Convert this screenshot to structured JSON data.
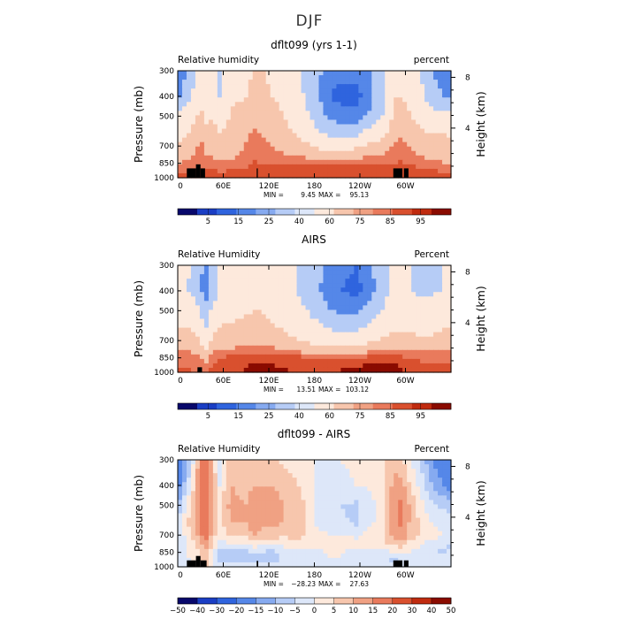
{
  "figure_title": "DJF",
  "chart_data": [
    {
      "type": "heatmap",
      "title": "dflt099 (yrs 1-1)",
      "left_label": "Relative humidity",
      "right_label": "percent",
      "ylabel": "Pressure (mb)",
      "y2label": "Height (km)",
      "x_ticks": [
        "0",
        "60E",
        "120E",
        "180",
        "120W",
        "60W"
      ],
      "y_ticks": [
        "300",
        "400",
        "500",
        "700",
        "850",
        "1000"
      ],
      "height_ticks": [
        "8",
        "4"
      ],
      "stats": {
        "min_label": "MIN =",
        "min": "9.45",
        "max_label": "MAX =",
        "max": "95.13"
      },
      "colorbar": {
        "labels": [
          "5",
          "15",
          "25",
          "40",
          "60",
          "75",
          "85",
          "95"
        ],
        "colors": [
          "#08086b",
          "#1a3ec4",
          "#2f64de",
          "#5587e8",
          "#86aaf0",
          "#b6ccf6",
          "#dde7f9",
          "#fde9dc",
          "#f7c6ad",
          "#f0a183",
          "#e97a5c",
          "#d9502e",
          "#c02b0f",
          "#8a0b00"
        ]
      },
      "field": {
        "lon": [
          0,
          18,
          30,
          36,
          45,
          55,
          70,
          90,
          100,
          110,
          125,
          140,
          160,
          180,
          200,
          215,
          235,
          250,
          270,
          285,
          295,
          305,
          320,
          335,
          350,
          360
        ],
        "pressure": [
          300,
          400,
          500,
          600,
          700,
          775,
          850,
          925,
          1000
        ],
        "values": [
          [
            12,
            30,
            55,
            45,
            55,
            35,
            50,
            55,
            60,
            62,
            55,
            50,
            42,
            30,
            20,
            18,
            18,
            22,
            40,
            55,
            55,
            50,
            40,
            25,
            20,
            15
          ],
          [
            22,
            40,
            55,
            48,
            55,
            40,
            55,
            60,
            65,
            65,
            60,
            55,
            45,
            28,
            15,
            12,
            12,
            18,
            35,
            60,
            60,
            55,
            45,
            30,
            25,
            22
          ],
          [
            45,
            55,
            65,
            55,
            60,
            50,
            62,
            68,
            72,
            72,
            65,
            60,
            50,
            35,
            22,
            18,
            18,
            25,
            40,
            65,
            68,
            62,
            55,
            45,
            48,
            50
          ],
          [
            55,
            62,
            70,
            65,
            65,
            60,
            66,
            72,
            76,
            75,
            70,
            65,
            58,
            45,
            35,
            32,
            35,
            45,
            55,
            70,
            74,
            68,
            62,
            58,
            60,
            58
          ],
          [
            60,
            68,
            78,
            72,
            70,
            66,
            70,
            76,
            80,
            78,
            74,
            70,
            66,
            58,
            52,
            52,
            56,
            62,
            68,
            76,
            80,
            74,
            68,
            66,
            65,
            62
          ],
          [
            66,
            72,
            80,
            76,
            74,
            70,
            72,
            78,
            82,
            80,
            78,
            76,
            74,
            70,
            68,
            68,
            70,
            72,
            74,
            80,
            83,
            78,
            74,
            72,
            70,
            68
          ],
          [
            74,
            80,
            84,
            80,
            78,
            76,
            78,
            82,
            86,
            84,
            82,
            82,
            82,
            82,
            82,
            82,
            82,
            83,
            82,
            84,
            86,
            84,
            80,
            78,
            76,
            74
          ],
          [
            82,
            86,
            88,
            86,
            86,
            84,
            86,
            88,
            90,
            90,
            90,
            92,
            93,
            94,
            94,
            94,
            94,
            93,
            92,
            90,
            92,
            90,
            88,
            86,
            84,
            82
          ],
          [
            86,
            88,
            90,
            90,
            90,
            88,
            90,
            92,
            93,
            92,
            92,
            92,
            92,
            92,
            92,
            92,
            92,
            92,
            92,
            90,
            92,
            92,
            92,
            92,
            90,
            88
          ]
        ]
      }
    },
    {
      "type": "heatmap",
      "title": "AIRS",
      "left_label": "Relative Humidity",
      "right_label": "Percent",
      "ylabel": "Pressure (mb)",
      "y2label": "Height (km)",
      "x_ticks": [
        "0",
        "60E",
        "120E",
        "180",
        "120W",
        "60W"
      ],
      "y_ticks": [
        "300",
        "400",
        "500",
        "700",
        "850",
        "1000"
      ],
      "height_ticks": [
        "8",
        "4"
      ],
      "stats": {
        "min_label": "MIN =",
        "min": "13.51",
        "max_label": "MAX =",
        "max": "103.12"
      },
      "colorbar": {
        "labels": [
          "5",
          "15",
          "25",
          "40",
          "60",
          "75",
          "85",
          "95"
        ],
        "colors": [
          "#08086b",
          "#1a3ec4",
          "#2f64de",
          "#5587e8",
          "#86aaf0",
          "#b6ccf6",
          "#dde7f9",
          "#fde9dc",
          "#f7c6ad",
          "#f0a183",
          "#e97a5c",
          "#d9502e",
          "#c02b0f",
          "#8a0b00"
        ]
      },
      "field": {
        "lon": [
          0,
          18,
          30,
          36,
          45,
          55,
          70,
          90,
          100,
          110,
          125,
          140,
          160,
          180,
          200,
          215,
          235,
          250,
          270,
          285,
          295,
          305,
          320,
          335,
          350,
          360
        ],
        "pressure": [
          300,
          400,
          500,
          600,
          700,
          775,
          850,
          925,
          1000
        ],
        "values": [
          [
            45,
            40,
            30,
            15,
            30,
            40,
            45,
            50,
            55,
            55,
            50,
            45,
            40,
            30,
            22,
            18,
            15,
            20,
            35,
            45,
            42,
            40,
            38,
            38,
            40,
            45
          ],
          [
            42,
            38,
            28,
            18,
            30,
            40,
            45,
            50,
            55,
            55,
            50,
            45,
            38,
            28,
            20,
            15,
            12,
            18,
            32,
            45,
            42,
            40,
            38,
            38,
            40,
            42
          ],
          [
            50,
            48,
            40,
            25,
            42,
            50,
            55,
            58,
            60,
            60,
            56,
            52,
            45,
            35,
            26,
            22,
            22,
            28,
            40,
            52,
            50,
            48,
            46,
            46,
            48,
            50
          ],
          [
            60,
            58,
            52,
            35,
            55,
            60,
            62,
            64,
            66,
            66,
            62,
            58,
            52,
            45,
            38,
            35,
            35,
            40,
            50,
            58,
            58,
            56,
            55,
            55,
            58,
            60
          ],
          [
            68,
            66,
            62,
            45,
            62,
            66,
            68,
            70,
            72,
            72,
            68,
            64,
            60,
            55,
            50,
            48,
            50,
            55,
            62,
            66,
            66,
            64,
            63,
            63,
            66,
            68
          ],
          [
            75,
            73,
            70,
            55,
            70,
            74,
            76,
            78,
            80,
            80,
            78,
            74,
            70,
            66,
            64,
            64,
            66,
            70,
            74,
            76,
            76,
            74,
            73,
            73,
            74,
            75
          ],
          [
            82,
            80,
            78,
            65,
            80,
            85,
            88,
            90,
            91,
            92,
            92,
            90,
            88,
            86,
            86,
            86,
            86,
            88,
            90,
            92,
            88,
            84,
            82,
            82,
            82,
            82
          ],
          [
            85,
            84,
            82,
            75,
            86,
            90,
            92,
            94,
            96,
            96,
            95,
            94,
            92,
            92,
            92,
            93,
            94,
            96,
            98,
            98,
            94,
            90,
            88,
            86,
            86,
            85
          ],
          [
            88,
            86,
            84,
            80,
            88,
            92,
            94,
            96,
            98,
            98,
            97,
            96,
            95,
            95,
            95,
            96,
            97,
            99,
            100,
            100,
            96,
            92,
            90,
            88,
            88,
            88
          ]
        ]
      }
    },
    {
      "type": "heatmap",
      "title": "dflt099 - AIRS",
      "left_label": "Relative Humidity",
      "right_label": "Percent",
      "ylabel": "Pressure (mb)",
      "y2label": "Height (km)",
      "x_ticks": [
        "0",
        "60E",
        "120E",
        "180",
        "120W",
        "60W"
      ],
      "y_ticks": [
        "300",
        "400",
        "500",
        "700",
        "850",
        "1000"
      ],
      "height_ticks": [
        "8",
        "4"
      ],
      "stats": {
        "min_label": "MIN =",
        "min": "−28.23",
        "max_label": "MAX =",
        "max": "27.63"
      },
      "colorbar": {
        "labels": [
          "−50",
          "−40",
          "−30",
          "−20",
          "−15",
          "−10",
          "−5",
          "0",
          "5",
          "10",
          "15",
          "20",
          "30",
          "40",
          "50"
        ],
        "colors": [
          "#08086b",
          "#1a3ec4",
          "#2f64de",
          "#5587e8",
          "#86aaf0",
          "#b6ccf6",
          "#dde7f9",
          "#fde9dc",
          "#f7c6ad",
          "#f0a183",
          "#e97a5c",
          "#d9502e",
          "#c02b0f",
          "#8a0b00"
        ]
      },
      "field": {
        "lon": [
          0,
          18,
          30,
          36,
          45,
          55,
          70,
          90,
          100,
          110,
          125,
          140,
          160,
          180,
          200,
          215,
          235,
          250,
          270,
          285,
          295,
          305,
          320,
          335,
          350,
          360
        ],
        "pressure": [
          300,
          400,
          500,
          600,
          700,
          775,
          850,
          925,
          1000
        ],
        "values": [
          [
            -20,
            -5,
            15,
            18,
            10,
            -5,
            8,
            6,
            5,
            8,
            6,
            4,
            2,
            0,
            -2,
            0,
            2,
            2,
            4,
            8,
            6,
            0,
            -5,
            -15,
            -20,
            -22
          ],
          [
            -18,
            0,
            18,
            20,
            12,
            0,
            10,
            8,
            10,
            10,
            10,
            8,
            5,
            0,
            -5,
            -3,
            0,
            0,
            3,
            12,
            12,
            6,
            -2,
            -10,
            -15,
            -18
          ],
          [
            -10,
            6,
            18,
            20,
            14,
            4,
            12,
            10,
            14,
            12,
            12,
            10,
            8,
            0,
            -5,
            -5,
            -6,
            -2,
            2,
            14,
            16,
            10,
            2,
            -4,
            -6,
            -8
          ],
          [
            -4,
            8,
            16,
            22,
            12,
            4,
            10,
            10,
            14,
            12,
            12,
            10,
            8,
            0,
            -4,
            -4,
            -6,
            -2,
            2,
            14,
            16,
            10,
            4,
            0,
            -2,
            -4
          ],
          [
            -4,
            6,
            12,
            20,
            10,
            2,
            6,
            6,
            10,
            8,
            8,
            6,
            6,
            2,
            0,
            0,
            -2,
            2,
            4,
            12,
            14,
            8,
            4,
            2,
            0,
            -2
          ],
          [
            -6,
            2,
            8,
            16,
            4,
            -2,
            0,
            0,
            2,
            2,
            0,
            2,
            4,
            4,
            4,
            4,
            4,
            4,
            4,
            6,
            8,
            4,
            0,
            -2,
            -4,
            -6
          ],
          [
            -4,
            2,
            6,
            10,
            2,
            -6,
            -6,
            -6,
            -4,
            -6,
            -6,
            -4,
            -4,
            -2,
            0,
            0,
            -2,
            -2,
            -4,
            0,
            0,
            0,
            -2,
            -4,
            -6,
            -4
          ],
          [
            -4,
            0,
            4,
            8,
            0,
            -6,
            -6,
            -6,
            -6,
            -6,
            -6,
            -4,
            -2,
            0,
            0,
            0,
            -2,
            -3,
            -4,
            -6,
            -4,
            -2,
            -2,
            -2,
            -4,
            -4
          ],
          [
            -2,
            0,
            4,
            6,
            0,
            -4,
            -4,
            -4,
            -4,
            -4,
            -4,
            -4,
            -2,
            -2,
            -2,
            -2,
            -2,
            -2,
            -2,
            -4,
            -2,
            -2,
            -2,
            -2,
            -2,
            -2
          ]
        ]
      }
    }
  ]
}
